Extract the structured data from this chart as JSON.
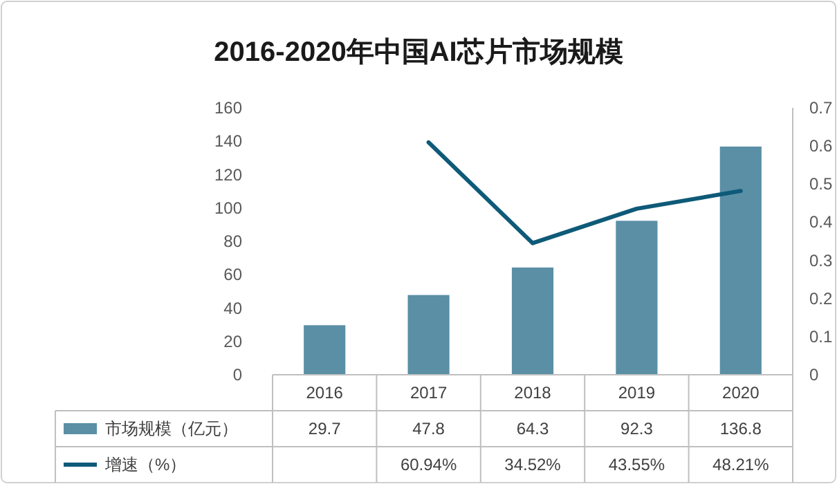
{
  "chart_data": {
    "type": "bar",
    "title": "2016-2020年中国AI芯片市场规模",
    "categories": [
      "2016",
      "2017",
      "2018",
      "2019",
      "2020"
    ],
    "series": [
      {
        "name": "市场规模（亿元）",
        "color": "#5a8fa6",
        "values": [
          29.7,
          47.8,
          64.3,
          92.3,
          136.8
        ],
        "value_labels": [
          "29.7",
          "47.8",
          "64.3",
          "92.3",
          "136.8"
        ]
      },
      {
        "name": "增速（%）",
        "type": "line",
        "axis": "y2",
        "color": "#0e5a78",
        "values": [
          null,
          0.6094,
          0.3452,
          0.4355,
          0.4821
        ],
        "value_labels": [
          null,
          "60.94%",
          "34.52%",
          "43.55%",
          "48.21%"
        ]
      }
    ],
    "ylim": [
      0,
      160
    ],
    "yticks": [
      0,
      20,
      40,
      60,
      80,
      100,
      120,
      140,
      160
    ],
    "y2lim": [
      0,
      0.7
    ],
    "y2ticks": [
      0,
      {
        "value": 0.1,
        "label": "0.1"
      },
      {
        "value": 0.2,
        "label": "0.2"
      },
      {
        "value": 0.3,
        "label": "0.3"
      },
      {
        "value": 0.4,
        "label": "0.4"
      },
      {
        "value": 0.5,
        "label": "0.5"
      },
      {
        "value": 0.6,
        "label": "0.6"
      },
      {
        "value": 0.7,
        "label": "0.7"
      }
    ],
    "legend": "bottom"
  }
}
